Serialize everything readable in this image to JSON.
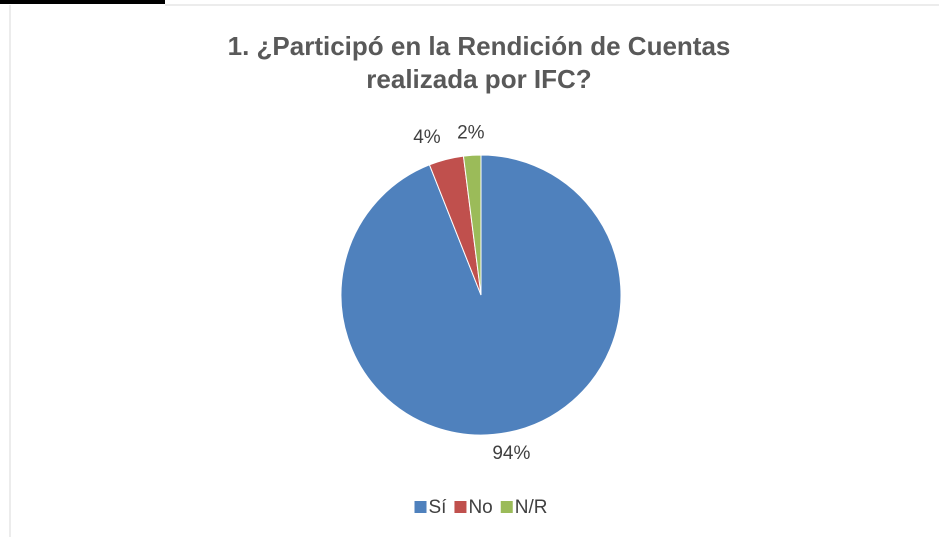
{
  "chart_data": {
    "type": "pie",
    "title": "1. ¿Participó en la Rendición de Cuentas realizada por IFC?",
    "categories": [
      "Sí",
      "No",
      "N/R"
    ],
    "values": [
      94,
      4,
      2
    ],
    "value_labels": [
      "94%",
      "4%",
      "2%"
    ],
    "colors": [
      "#4f81bd",
      "#c0504d",
      "#9bbb59"
    ],
    "legend": "bottom"
  }
}
